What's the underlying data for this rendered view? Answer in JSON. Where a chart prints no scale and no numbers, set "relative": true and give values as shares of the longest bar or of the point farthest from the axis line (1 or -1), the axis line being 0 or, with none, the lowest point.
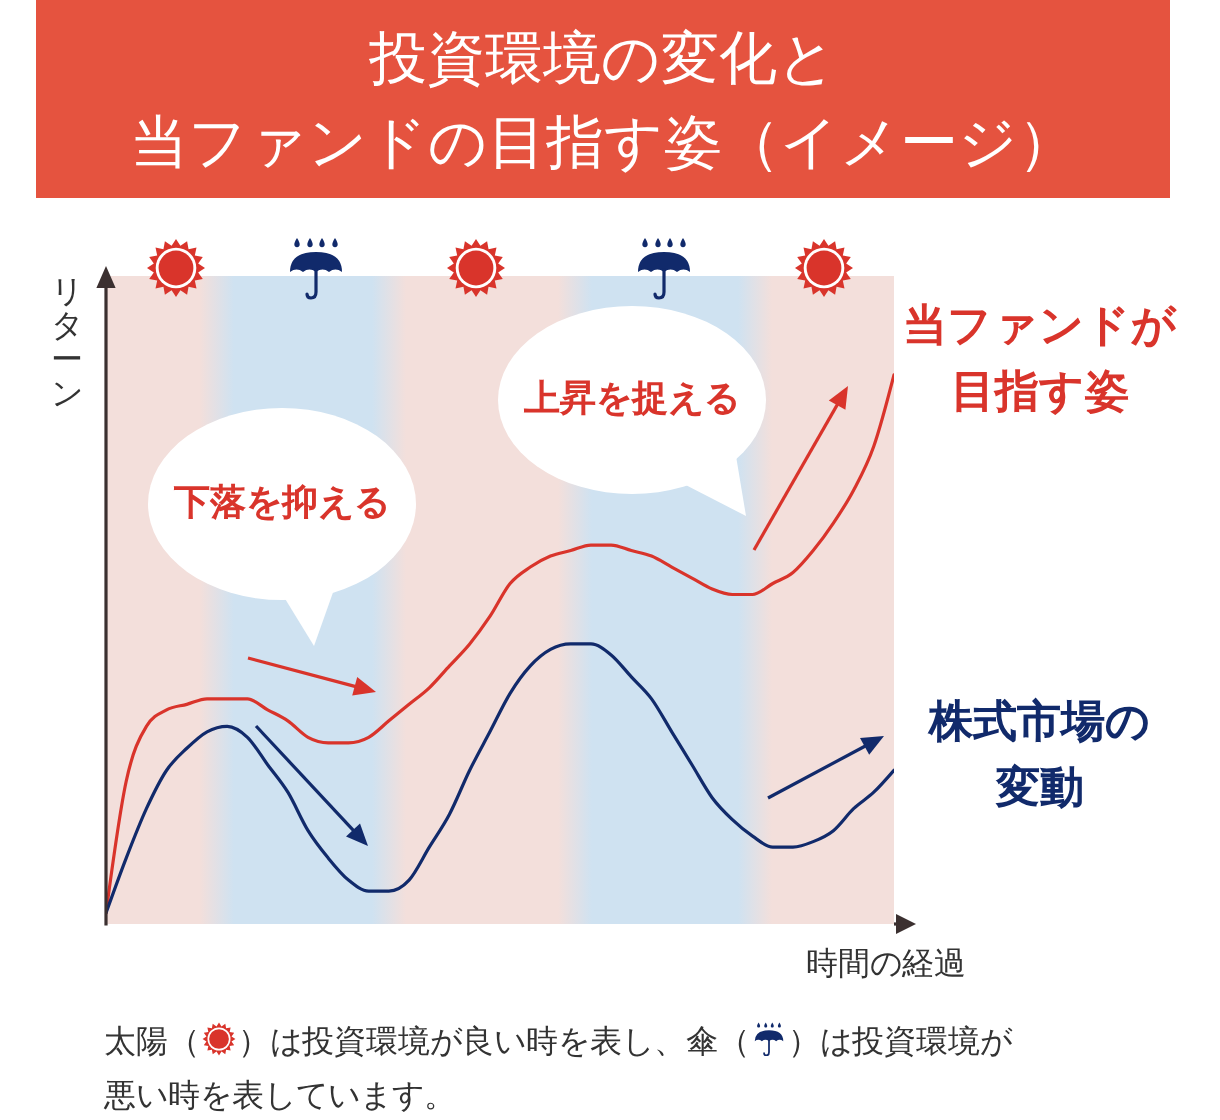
{
  "chart_data": {
    "type": "line",
    "title": "投資環境の変化と",
    "subtitle": "当ファンドの目指す姿（イメージ）",
    "xlabel": "時間の経過",
    "ylabel": "リターン",
    "relative": true,
    "categories": [
      null,
      null,
      null,
      null,
      null,
      null,
      null,
      null,
      null,
      null,
      null,
      null,
      null,
      null,
      null,
      null,
      null,
      null,
      null,
      null,
      null,
      null,
      null,
      null,
      null,
      null,
      null,
      null,
      null,
      null,
      null,
      null,
      null,
      null,
      null,
      null,
      null,
      null,
      null,
      null
    ],
    "series": [
      {
        "name": "当ファンドが目指す姿",
        "color": "#d9342b",
        "values": [
          0.02,
          0.26,
          0.36,
          0.39,
          0.4,
          0.41,
          0.41,
          0.41,
          0.39,
          0.37,
          0.34,
          0.33,
          0.33,
          0.34,
          0.37,
          0.4,
          0.43,
          0.47,
          0.51,
          0.56,
          0.62,
          0.65,
          0.67,
          0.68,
          0.69,
          0.69,
          0.68,
          0.67,
          0.65,
          0.63,
          0.61,
          0.6,
          0.6,
          0.62,
          0.64,
          0.68,
          0.73,
          0.79,
          0.87,
          1
        ]
      },
      {
        "name": "株式市場の変動",
        "color": "#112a6b",
        "values": [
          0.02,
          0.12,
          0.21,
          0.28,
          0.32,
          0.35,
          0.36,
          0.34,
          0.29,
          0.24,
          0.17,
          0.12,
          0.08,
          0.06,
          0.06,
          0.08,
          0.14,
          0.2,
          0.28,
          0.35,
          0.42,
          0.47,
          0.5,
          0.51,
          0.51,
          0.49,
          0.45,
          0.41,
          0.35,
          0.29,
          0.23,
          0.19,
          0.16,
          0.14,
          0.14,
          0.15,
          0.17,
          0.21,
          0.24,
          0.28
        ]
      }
    ],
    "annotations": [
      "下落を抑える",
      "上昇を捉える",
      "太陽（",
      "）は投資環境が良い時を表し、傘（",
      "）は投資環境が",
      "悪い時を表しています。"
    ]
  }
}
